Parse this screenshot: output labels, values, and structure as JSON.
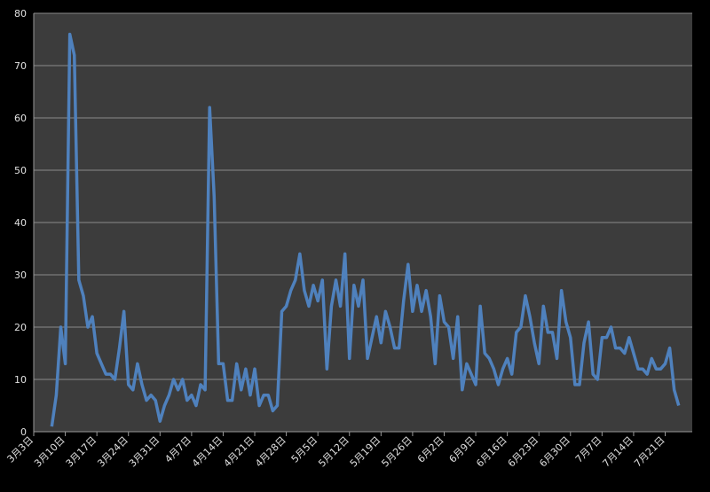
{
  "chart_data": {
    "type": "line",
    "categories": [
      "3月3日",
      null,
      null,
      null,
      null,
      null,
      null,
      "3月10日",
      null,
      null,
      null,
      null,
      null,
      null,
      "3月17日",
      null,
      null,
      null,
      null,
      null,
      null,
      "3月24日",
      null,
      null,
      null,
      null,
      null,
      null,
      "3月31日",
      null,
      null,
      null,
      null,
      null,
      null,
      "4月7日",
      null,
      null,
      null,
      null,
      null,
      null,
      "4月14日",
      null,
      null,
      null,
      null,
      null,
      null,
      "4月21日",
      null,
      null,
      null,
      null,
      null,
      null,
      "4月28日",
      null,
      null,
      null,
      null,
      null,
      null,
      "5月5日",
      null,
      null,
      null,
      null,
      null,
      null,
      "5月12日",
      null,
      null,
      null,
      null,
      null,
      null,
      "5月19日",
      null,
      null,
      null,
      null,
      null,
      null,
      "5月26日",
      null,
      null,
      null,
      null,
      null,
      null,
      "6月2日",
      null,
      null,
      null,
      null,
      null,
      null,
      "6月9日",
      null,
      null,
      null,
      null,
      null,
      null,
      "6月16日",
      null,
      null,
      null,
      null,
      null,
      null,
      "6月23日",
      null,
      null,
      null,
      null,
      null,
      null,
      "6月30日",
      null,
      null,
      null,
      null,
      null,
      null,
      "7月7日",
      null,
      null,
      null,
      null,
      null,
      null,
      "7月14日",
      null,
      null,
      null,
      null,
      null,
      null,
      "7月21日",
      null,
      null,
      null,
      null,
      null
    ],
    "values": [
      null,
      null,
      null,
      null,
      1,
      7,
      20,
      13,
      76,
      72,
      29,
      26,
      20,
      22,
      15,
      13,
      11,
      11,
      10,
      16,
      23,
      9,
      8,
      13,
      9,
      6,
      7,
      6,
      2,
      5,
      7,
      10,
      8,
      10,
      6,
      7,
      5,
      9,
      8,
      62,
      45,
      13,
      13,
      6,
      6,
      13,
      8,
      12,
      7,
      12,
      5,
      7,
      7,
      4,
      5,
      23,
      24,
      27,
      29,
      34,
      27,
      24,
      28,
      25,
      29,
      12,
      24,
      29,
      24,
      34,
      14,
      28,
      24,
      29,
      14,
      18,
      22,
      17,
      23,
      20,
      16,
      16,
      25,
      32,
      23,
      28,
      23,
      27,
      22,
      13,
      26,
      21,
      20,
      14,
      22,
      8,
      13,
      11,
      9,
      24,
      15,
      14,
      12,
      9,
      12,
      14,
      11,
      19,
      20,
      26,
      22,
      17,
      13,
      24,
      19,
      19,
      14,
      27,
      21,
      18,
      9,
      9,
      17,
      21,
      11,
      10,
      18,
      18,
      20,
      16,
      16,
      15,
      18,
      15,
      12,
      12,
      11,
      14,
      12,
      12,
      13,
      16,
      8,
      5,
      null,
      null
    ],
    "color": "#4f81bd",
    "ylim": [
      0,
      80
    ],
    "yticks": [
      0,
      10,
      20,
      30,
      40,
      50,
      60,
      70,
      80
    ],
    "grid": true
  }
}
